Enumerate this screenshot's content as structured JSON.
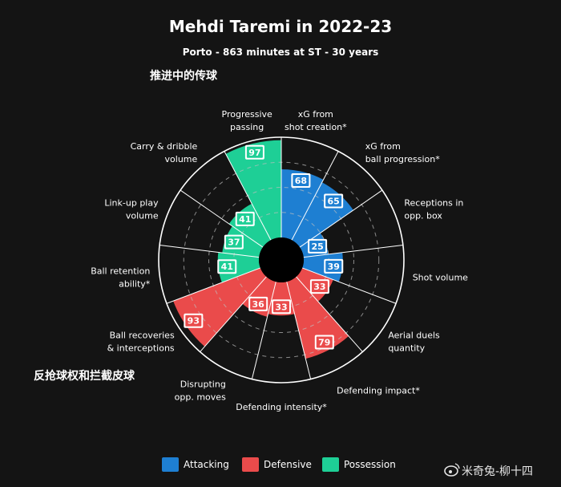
{
  "chart_data": {
    "type": "polar-bar",
    "title": "Mehdi Taremi in 2022-23",
    "subtitle": "Porto - 863 minutes at ST - 30 years",
    "range": [
      0,
      100
    ],
    "categories": [
      {
        "label": [
          "xG from",
          "shot creation*"
        ],
        "value": 68,
        "group": "Attacking"
      },
      {
        "label": [
          "xG from",
          "ball progression*"
        ],
        "value": 65,
        "group": "Attacking"
      },
      {
        "label": [
          "Receptions in",
          "opp. box"
        ],
        "value": 25,
        "group": "Attacking"
      },
      {
        "label": [
          "Shot volume"
        ],
        "value": 39,
        "group": "Attacking"
      },
      {
        "label": [
          "Aerial duels",
          "quantity"
        ],
        "value": 33,
        "group": "Defensive"
      },
      {
        "label": [
          "Defending impact*"
        ],
        "value": 79,
        "group": "Defensive"
      },
      {
        "label": [
          "Defending intensity*"
        ],
        "value": 33,
        "group": "Defensive"
      },
      {
        "label": [
          "Disrupting",
          "opp. moves"
        ],
        "value": 36,
        "group": "Defensive"
      },
      {
        "label": [
          "Ball recoveries",
          "& interceptions"
        ],
        "value": 93,
        "group": "Defensive"
      },
      {
        "label": [
          "Ball retention",
          "ability*"
        ],
        "value": 41,
        "group": "Possession"
      },
      {
        "label": [
          "Link-up play",
          "volume"
        ],
        "value": 37,
        "group": "Possession"
      },
      {
        "label": [
          "Carry & dribble",
          "volume"
        ],
        "value": 41,
        "group": "Possession"
      },
      {
        "label": [
          "Progressive",
          "passing"
        ],
        "value": 97,
        "group": "Possession"
      }
    ],
    "legend": [
      {
        "name": "Attacking",
        "color": "#1e7fd2"
      },
      {
        "name": "Defensive",
        "color": "#ea4b4b"
      },
      {
        "name": "Possession",
        "color": "#1ecf96"
      }
    ],
    "legend_position": "bottom"
  },
  "annotations": {
    "possession_cn": "推进中的传球",
    "defensive_cn": "反抢球权和拦截皮球"
  },
  "watermark": "米奇兔-柳十四"
}
